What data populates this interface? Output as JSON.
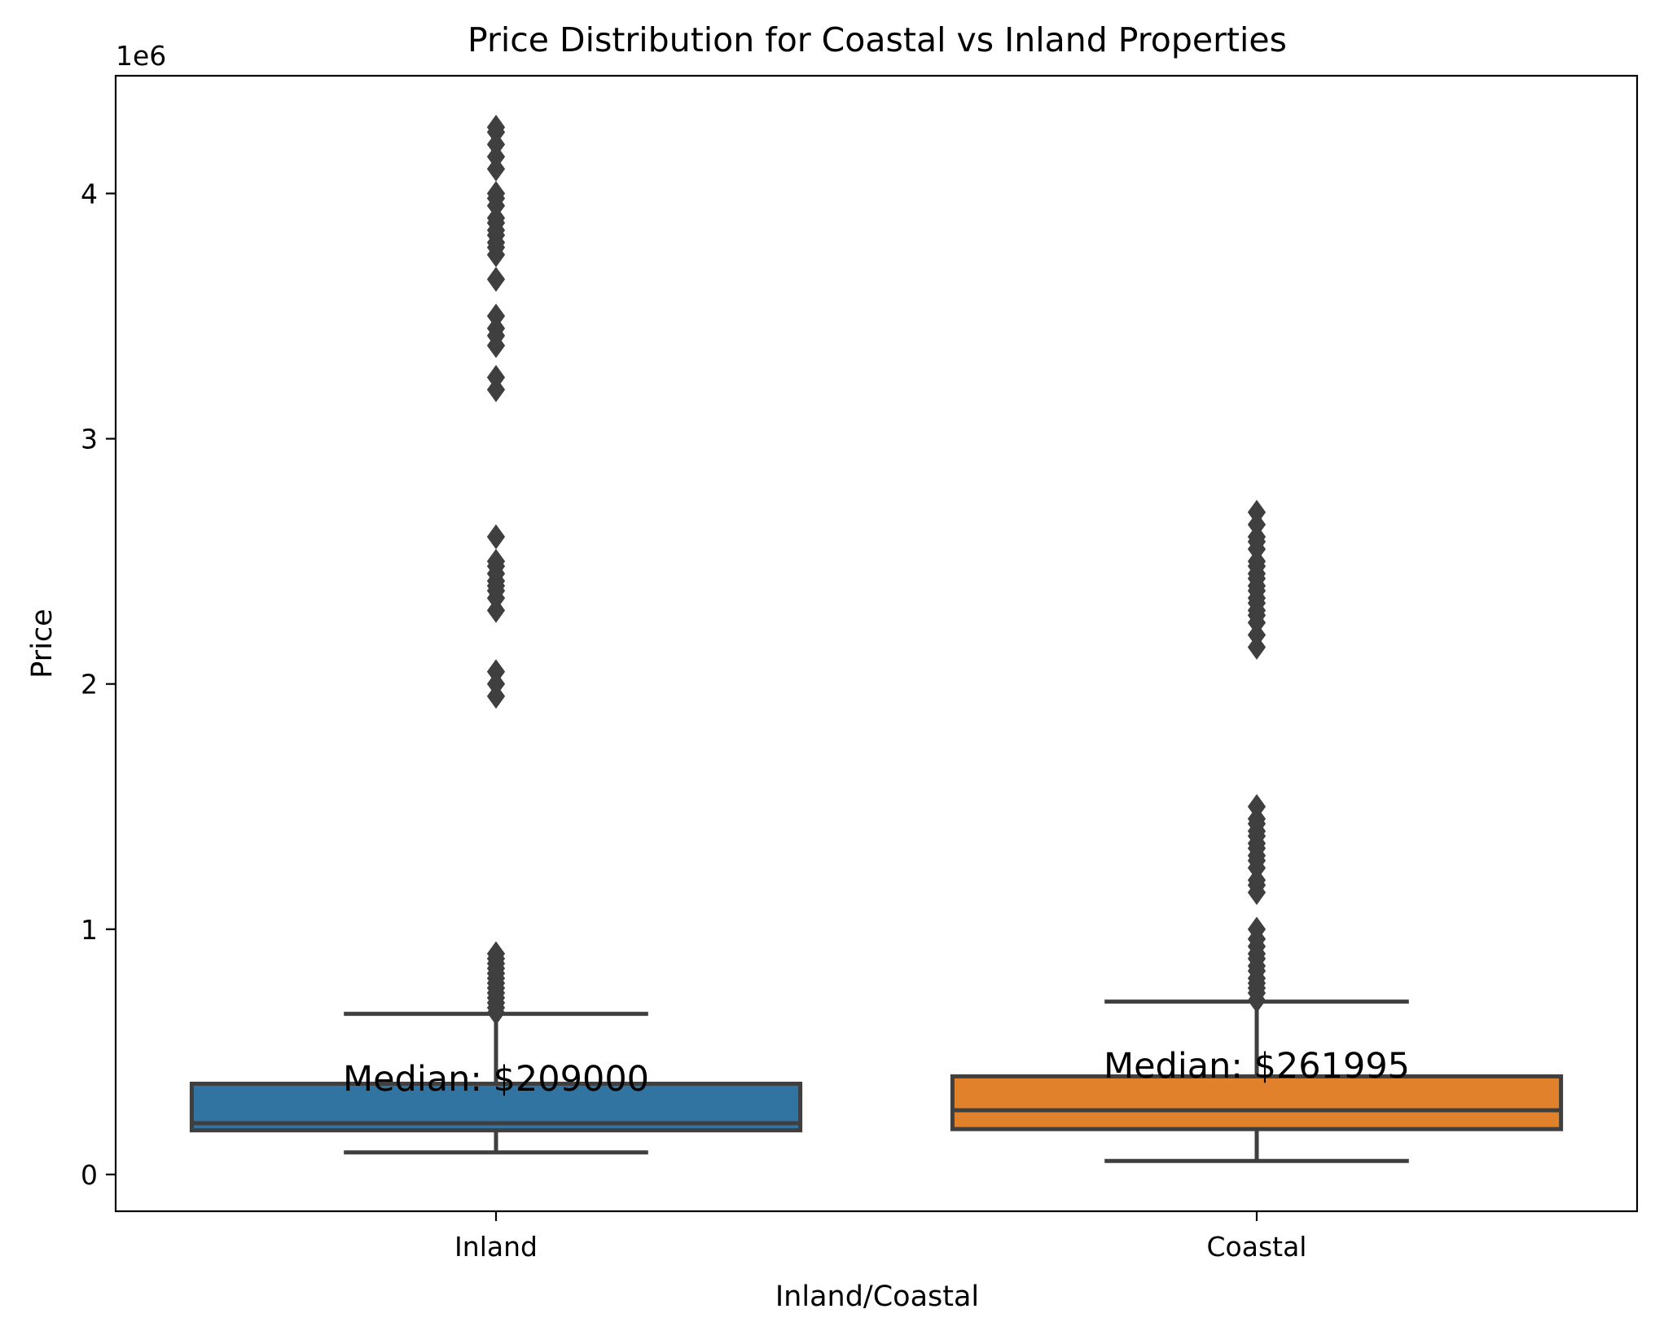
{
  "chart_data": {
    "type": "box",
    "title": "Price Distribution for Coastal vs Inland Properties",
    "xlabel": "Inland/Coastal",
    "ylabel": "Price",
    "y_offset_label": "1e6",
    "y_scale": 1000000,
    "ylim": [
      -150000,
      4480000
    ],
    "yticks": [
      0,
      1,
      2,
      3,
      4
    ],
    "grid": false,
    "categories": [
      "Inland",
      "Coastal"
    ],
    "boxes": [
      {
        "name": "Inland",
        "color": "#3274a1",
        "whisker_low": 90000,
        "q1": 180000,
        "median": 209000,
        "q3": 370000,
        "whisker_high": 655000,
        "median_label": "Median: $209000",
        "outliers": [
          660000,
          680000,
          700000,
          720000,
          740000,
          760000,
          780000,
          800000,
          820000,
          840000,
          860000,
          880000,
          900000,
          1950000,
          2000000,
          2050000,
          2300000,
          2350000,
          2380000,
          2400000,
          2420000,
          2450000,
          2480000,
          2500000,
          2600000,
          3200000,
          3250000,
          3380000,
          3420000,
          3450000,
          3500000,
          3650000,
          3750000,
          3780000,
          3800000,
          3830000,
          3850000,
          3880000,
          3900000,
          3950000,
          3980000,
          4000000,
          4100000,
          4150000,
          4200000,
          4250000,
          4270000
        ]
      },
      {
        "name": "Coastal",
        "color": "#e1812c",
        "whisker_low": 55000,
        "q1": 185000,
        "median": 261995,
        "q3": 400000,
        "whisker_high": 705000,
        "median_label": "Median: $261995",
        "outliers": [
          710000,
          740000,
          760000,
          780000,
          800000,
          830000,
          850000,
          880000,
          900000,
          930000,
          960000,
          1000000,
          1150000,
          1180000,
          1200000,
          1250000,
          1280000,
          1300000,
          1330000,
          1350000,
          1380000,
          1400000,
          1430000,
          1450000,
          1500000,
          2150000,
          2200000,
          2250000,
          2280000,
          2300000,
          2330000,
          2350000,
          2380000,
          2400000,
          2430000,
          2450000,
          2480000,
          2500000,
          2550000,
          2580000,
          2600000,
          2650000,
          2700000
        ]
      }
    ]
  }
}
